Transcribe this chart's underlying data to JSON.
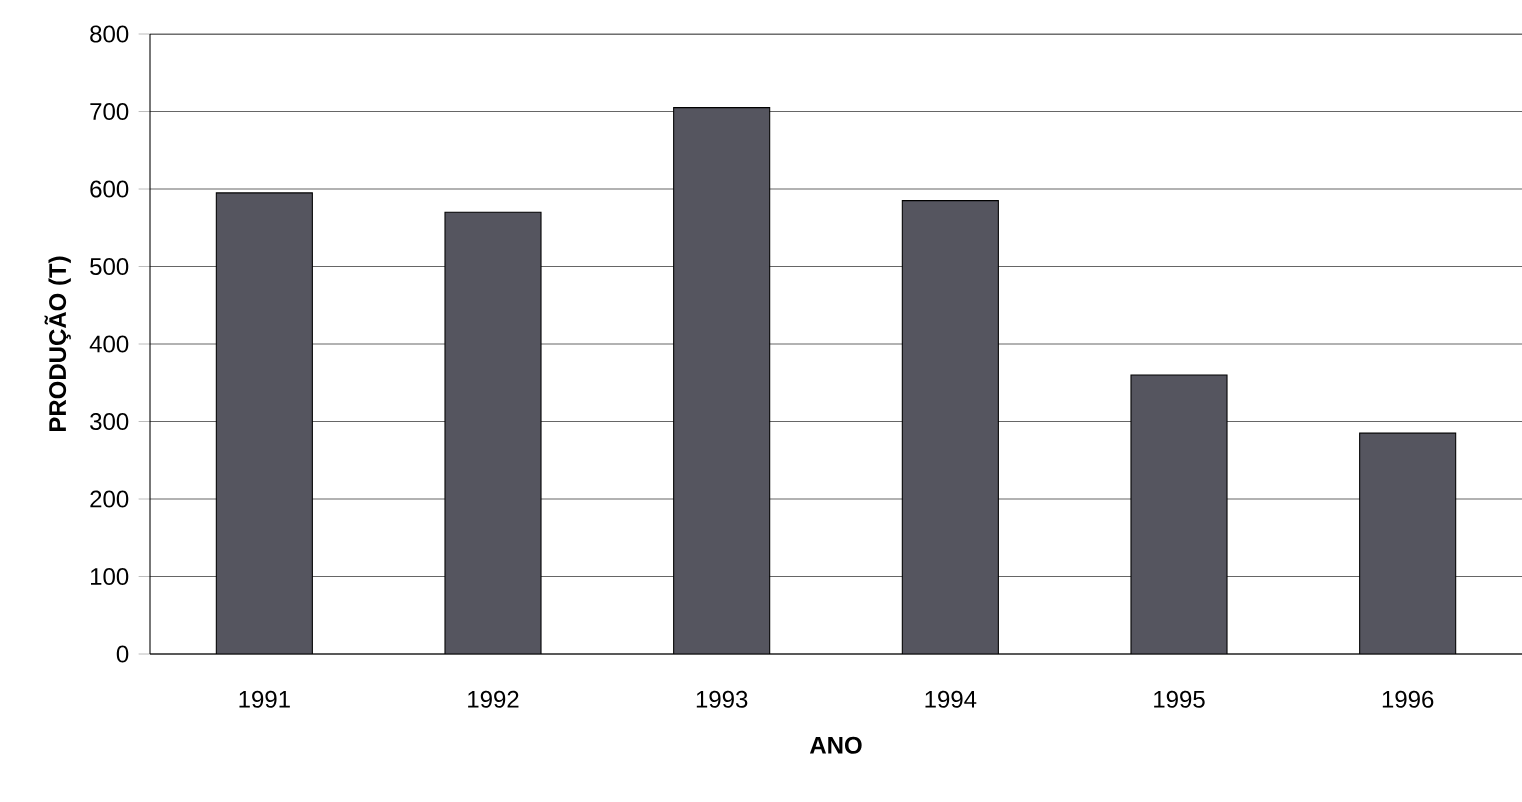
{
  "chart_data": {
    "type": "bar",
    "xlabel": "ANO",
    "ylabel": "PRODUÇÃO (T)",
    "categories": [
      "1991",
      "1992",
      "1993",
      "1994",
      "1995",
      "1996"
    ],
    "values": [
      595,
      570,
      705,
      585,
      360,
      285
    ],
    "color": "#55555f",
    "ylim": [
      0,
      800
    ],
    "yticks": [
      0,
      100,
      200,
      300,
      400,
      500,
      600,
      700,
      800
    ],
    "grid": "y"
  }
}
